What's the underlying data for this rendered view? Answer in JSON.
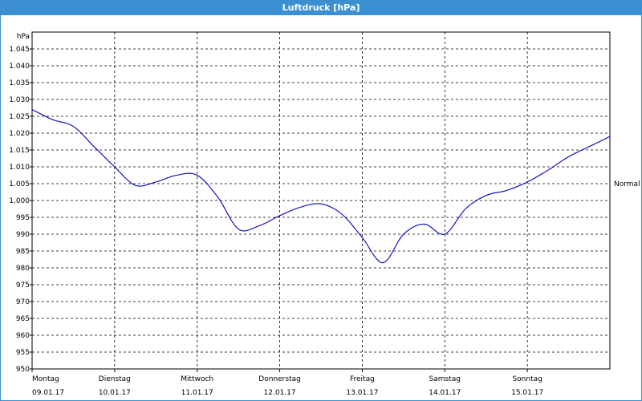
{
  "window": {
    "title": "Luftdruck [hPa]",
    "titlebar_color": "#3c8fd0"
  },
  "chart_data": {
    "type": "line",
    "title": "Luftdruck [hPa]",
    "ylabel": "hPa",
    "xlabel": "",
    "ylim": [
      950,
      1050
    ],
    "yticks": [
      950,
      955,
      960,
      965,
      970,
      975,
      980,
      985,
      990,
      995,
      1000,
      1005,
      1010,
      1015,
      1020,
      1025,
      1030,
      1035,
      1040,
      1045
    ],
    "ytick_labels": [
      "950",
      "955",
      "960",
      "965",
      "970",
      "975",
      "980",
      "985",
      "990",
      "995",
      "1.000",
      "1.005",
      "1.010",
      "1.015",
      "1.020",
      "1.025",
      "1.030",
      "1.035",
      "1.040",
      "1.045"
    ],
    "x_categories": [
      {
        "day": "Montag",
        "date": "09.01.17"
      },
      {
        "day": "Dienstag",
        "date": "10.01.17"
      },
      {
        "day": "Mittwoch",
        "date": "11.01.17"
      },
      {
        "day": "Donnerstag",
        "date": "12.01.17"
      },
      {
        "day": "Freitag",
        "date": "13.01.17"
      },
      {
        "day": "Samstag",
        "date": "14.01.17"
      },
      {
        "day": "Sonntag",
        "date": "15.01.17"
      }
    ],
    "reference_line": {
      "label": "Normal",
      "value": 1005
    },
    "grid": true,
    "line_color": "#0000c0",
    "series": [
      {
        "x": [
          "09.01.17 00:00",
          "09.01.17 06:00",
          "09.01.17 12:00",
          "09.01.17 18:00",
          "10.01.17 00:00",
          "10.01.17 06:00",
          "10.01.17 12:00",
          "10.01.17 18:00",
          "11.01.17 00:00",
          "11.01.17 06:00",
          "11.01.17 12:00",
          "11.01.17 18:00",
          "12.01.17 00:00",
          "12.01.17 06:00",
          "12.01.17 12:00",
          "12.01.17 18:00",
          "13.01.17 00:00",
          "13.01.17 06:00",
          "13.01.17 12:00",
          "13.01.17 18:00",
          "14.01.17 00:00",
          "14.01.17 06:00",
          "14.01.17 12:00",
          "14.01.17 18:00",
          "15.01.17 00:00",
          "15.01.17 06:00",
          "15.01.17 12:00",
          "15.01.17 18:00",
          "16.01.17 00:00"
        ],
        "values": [
          1027,
          1024,
          1022,
          1016,
          1010,
          1004.5,
          1005.5,
          1007.5,
          1007.5,
          1001,
          991.5,
          992.5,
          995.5,
          998,
          999,
          996,
          989,
          981.5,
          990,
          993,
          990,
          997.5,
          1001.5,
          1003,
          1005.5,
          1009,
          1013,
          1016,
          1019
        ]
      }
    ]
  }
}
